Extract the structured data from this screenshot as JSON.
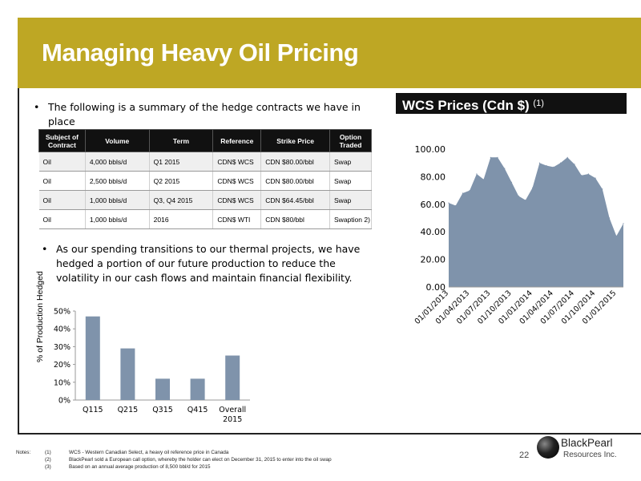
{
  "slide": {
    "title": "Managing Heavy Oil Pricing",
    "page_number": "22",
    "colors": {
      "title_bar": "#bea724",
      "bar_fill": "#7f93ab",
      "area_fill": "#7f93ab"
    }
  },
  "bullets": {
    "first": "The following is a summary of the hedge contracts we have in place",
    "second": "As our spending transitions to our thermal projects, we have hedged a portion of our future production  to reduce the volatility in our cash flows and maintain financial flexibility.",
    "marker": "•"
  },
  "hedge_table": {
    "headers": [
      "Subject of Contract",
      "Volume",
      "Term",
      "Reference",
      "Strike Price",
      "Option Traded"
    ],
    "rows": [
      [
        "Oil",
        "4,000 bbls/d",
        "Q1 2015",
        "CDN$ WCS",
        "CDN $80.00/bbl",
        "Swap"
      ],
      [
        "Oil",
        "2,500 bbls/d",
        "Q2 2015",
        "CDN$ WCS",
        "CDN $80.00/bbl",
        "Swap"
      ],
      [
        "Oil",
        "1,000 bbls/d",
        "Q3, Q4 2015",
        "CDN$ WCS",
        "CDN $64.45/bbl",
        "Swap"
      ],
      [
        "Oil",
        "1,000 bbls/d",
        "2016",
        "CDN$ WTI",
        "CDN $80/bbl",
        "Swaption 2)"
      ]
    ]
  },
  "wcs_panel": {
    "title": "WCS Prices (Cdn $) ",
    "note_ref": "(1)"
  },
  "chart_data": [
    {
      "type": "area",
      "title": "WCS Prices (Cdn $) (1)",
      "xlabel": "",
      "ylabel": "",
      "ylim": [
        0,
        100
      ],
      "yticks": [
        "0.00",
        "20.00",
        "40.00",
        "60.00",
        "80.00",
        "100.00"
      ],
      "xticks": [
        "01/01/2013",
        "01/04/2013",
        "01/07/2013",
        "01/10/2013",
        "01/01/2014",
        "01/04/2014",
        "01/07/2014",
        "01/10/2014",
        "01/01/2015"
      ],
      "x_months": [
        "2013-01",
        "2013-02",
        "2013-03",
        "2013-04",
        "2013-05",
        "2013-06",
        "2013-07",
        "2013-08",
        "2013-09",
        "2013-10",
        "2013-11",
        "2013-12",
        "2014-01",
        "2014-02",
        "2014-03",
        "2014-04",
        "2014-05",
        "2014-06",
        "2014-07",
        "2014-08",
        "2014-09",
        "2014-10",
        "2014-11",
        "2014-12",
        "2015-01",
        "2015-02"
      ],
      "values": [
        61,
        59,
        68,
        70,
        82,
        78,
        94,
        94,
        86,
        76,
        66,
        63,
        72,
        90,
        88,
        87,
        90,
        94,
        89,
        81,
        82,
        79,
        71,
        50,
        37,
        46
      ],
      "grid": false,
      "legend": "none"
    },
    {
      "type": "bar",
      "categories": [
        "Q115",
        "Q215",
        "Q315",
        "Q415",
        "Overall 2015"
      ],
      "values": [
        47,
        29,
        12,
        12,
        25
      ],
      "xlabel": "",
      "ylabel": "% of Production Hedged",
      "ylim": [
        0,
        50
      ],
      "yticks": [
        "0%",
        "10%",
        "20%",
        "30%",
        "40%",
        "50%"
      ],
      "grid": false,
      "legend": "none"
    }
  ],
  "footnotes": {
    "label": "Notes:",
    "items": [
      {
        "num": "(1)",
        "text": "WCS - Western Canadian Select, a heavy oil reference price in Canada"
      },
      {
        "num": "(2)",
        "text": "BlackPearl sold a European call option, whereby the holder can elect on December 31, 2015 to enter into the oil swap"
      },
      {
        "num": "(3)",
        "text": "Based on an annual average production of  8,500 bbl/d for 2015"
      }
    ]
  },
  "logo": {
    "name": "BlackPearl",
    "sub": "Resources Inc."
  }
}
